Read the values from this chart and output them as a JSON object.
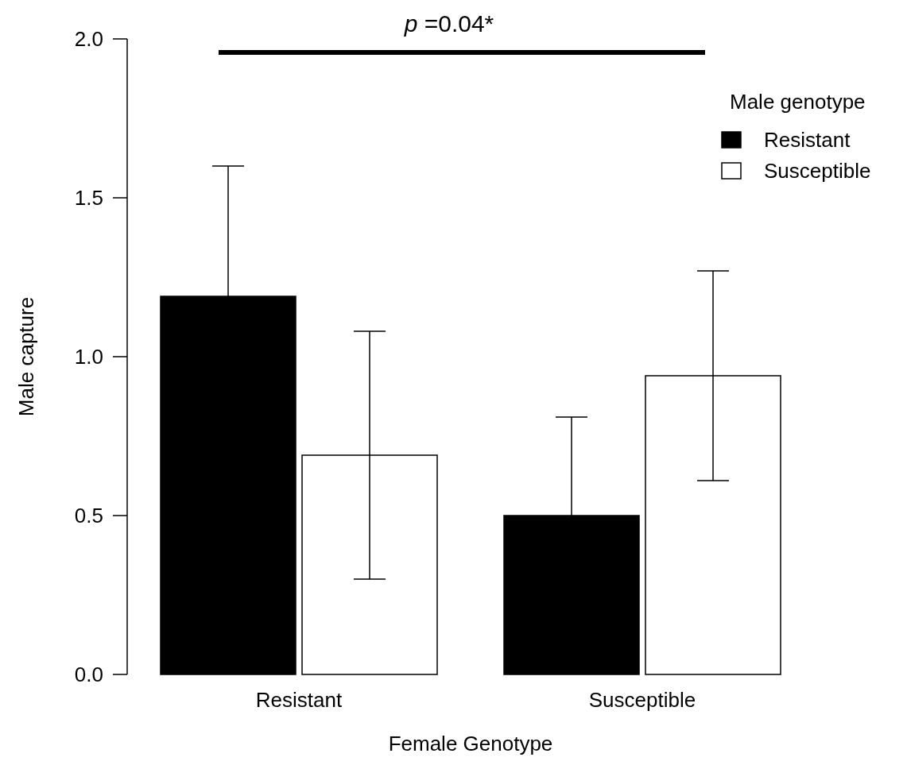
{
  "chart_data": {
    "type": "bar",
    "xlabel": "Female Genotype",
    "ylabel": "Male capture",
    "categories": [
      "Resistant",
      "Susceptible"
    ],
    "series": [
      {
        "name": "Resistant",
        "color": "#000000",
        "values": [
          1.19,
          0.5
        ],
        "errors": [
          0.41,
          0.31
        ]
      },
      {
        "name": "Susceptible",
        "color": "#ffffff",
        "values": [
          0.69,
          0.94
        ],
        "errors": [
          0.39,
          0.33
        ]
      }
    ],
    "ylim": [
      0,
      2
    ],
    "yticks": [
      {
        "value": 0,
        "label": "0.0"
      },
      {
        "value": 0.5,
        "label": "0.5"
      },
      {
        "value": 1,
        "label": "1.0"
      },
      {
        "value": 1.5,
        "label": "1.5"
      },
      {
        "value": 2,
        "label": "2.0"
      }
    ],
    "grid": false,
    "legend": "top right",
    "legend_title": "Male genotype",
    "annotations": [
      "p =0.04*"
    ]
  }
}
